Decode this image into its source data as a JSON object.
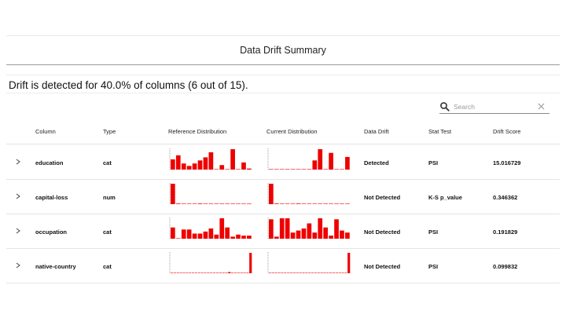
{
  "title": "Data Drift Summary",
  "summary": "Drift is detected for 40.0% of columns (6 out of 15).",
  "search": {
    "placeholder": "Search",
    "value": ""
  },
  "columns": {
    "column": "Column",
    "type": "Type",
    "reference": "Reference Distribution",
    "current": "Current Distribution",
    "drift": "Data Drift",
    "test": "Stat Test",
    "score": "Drift Score"
  },
  "colors": {
    "bar": "#ee0000",
    "axis": "#666666"
  },
  "rows": [
    {
      "column": "education",
      "type": "cat",
      "drift": "Detected",
      "test": "PSI",
      "score": "15.016729",
      "ref_hist": [
        0.5,
        0.7,
        0.3,
        0.18,
        0.3,
        0.45,
        0.6,
        0.85,
        0,
        0.22,
        0,
        1,
        0,
        0.35,
        0.05
      ],
      "cur_hist": [
        0.02,
        0,
        0,
        0,
        0.02,
        0,
        0,
        0,
        0.45,
        1,
        0,
        0.82,
        0,
        0.02,
        0.62
      ]
    },
    {
      "column": "capital-loss",
      "type": "num",
      "drift": "Not Detected",
      "test": "K-S p_value",
      "score": "0.346362",
      "ref_hist": [
        1,
        0.03,
        0.02,
        0.02,
        0.02,
        0.03,
        0.02,
        0.02,
        0.02,
        0.02,
        0.02,
        0.02,
        0.02,
        0.02,
        0.02
      ],
      "cur_hist": [
        1,
        0.03,
        0.02,
        0.02,
        0.02,
        0.03,
        0.02,
        0.02,
        0.02,
        0.02,
        0.02,
        0.02,
        0.02,
        0.02,
        0.02
      ]
    },
    {
      "column": "occupation",
      "type": "cat",
      "drift": "Not Detected",
      "test": "PSI",
      "score": "0.191829",
      "ref_hist": [
        0.55,
        0.02,
        0.45,
        0.45,
        0.25,
        0.25,
        0.35,
        0.5,
        0.2,
        1,
        0.55,
        0.1,
        0.2,
        0.15,
        0.15
      ],
      "cur_hist": [
        0.95,
        0.1,
        1,
        1,
        0.3,
        0.4,
        0.5,
        0.75,
        0.3,
        1,
        0.55,
        0.15,
        0.95,
        0.4,
        0.3
      ]
    },
    {
      "column": "native-country",
      "type": "cat",
      "drift": "Not Detected",
      "test": "PSI",
      "score": "0.099832",
      "ref_hist": [
        0.02,
        0.02,
        0.02,
        0.02,
        0.02,
        0.02,
        0.02,
        0.02,
        0.02,
        0.02,
        0.02,
        0.02,
        0.02,
        0.02,
        0.02,
        0.02,
        0.02,
        0.02,
        0.02,
        0.06,
        0.02,
        0.02,
        0.02,
        0.02,
        0.02,
        0.02,
        1
      ],
      "cur_hist": [
        0.02,
        0.02,
        0.02,
        0.02,
        0.02,
        0.02,
        0.02,
        0.02,
        0.02,
        0.02,
        0.02,
        0.02,
        0.02,
        0.02,
        0.02,
        0.02,
        0.02,
        0.02,
        0.02,
        0.02,
        0.02,
        0.02,
        0.02,
        0.02,
        0.02,
        0.02,
        1
      ]
    }
  ]
}
